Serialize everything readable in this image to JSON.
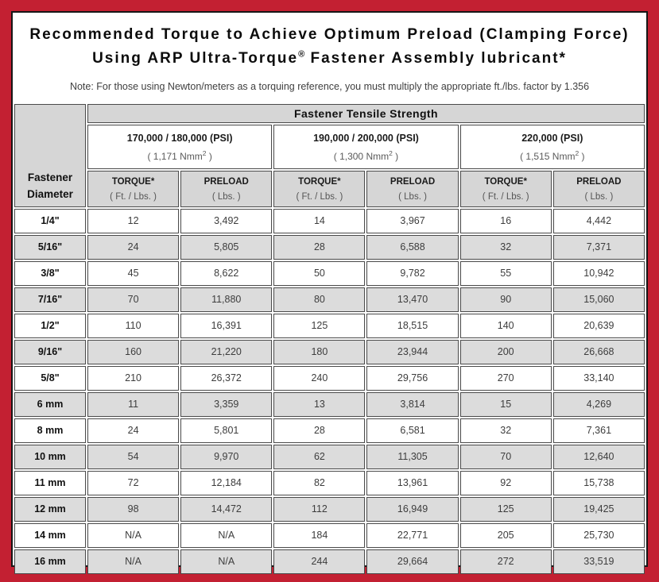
{
  "title": {
    "line1": "Recommended Torque to Achieve Optimum Preload (Clamping Force)",
    "line2_pre": "Using ARP Ultra-Torque",
    "line2_sup": "®",
    "line2_post": " Fastener Assembly lubricant*",
    "note": "Note: For those using Newton/meters as a torquing reference, you must multiply the appropriate ft./lbs. factor by 1.356"
  },
  "table": {
    "tensile_header": "Fastener Tensile Strength",
    "diameter_header_line1": "Fastener",
    "diameter_header_line2": "Diameter",
    "groups": [
      {
        "psi": "170,000 / 180,000 (PSI)",
        "nmm_pre": "( 1,171 Nmm",
        "nmm_sup": "2",
        "nmm_post": " )"
      },
      {
        "psi": "190,000 / 200,000 (PSI)",
        "nmm_pre": "( 1,300 Nmm",
        "nmm_sup": "2",
        "nmm_post": " )"
      },
      {
        "psi": "220,000 (PSI)",
        "nmm_pre": "( 1,515 Nmm",
        "nmm_sup": "2",
        "nmm_post": " )"
      }
    ],
    "torque_label": "TORQUE*",
    "torque_unit": "( Ft. / Lbs. )",
    "preload_label": "PRELOAD",
    "preload_unit": "( Lbs. )",
    "rows": [
      {
        "diameter": "1/4\"",
        "values": [
          "12",
          "3,492",
          "14",
          "3,967",
          "16",
          "4,442"
        ]
      },
      {
        "diameter": "5/16\"",
        "values": [
          "24",
          "5,805",
          "28",
          "6,588",
          "32",
          "7,371"
        ]
      },
      {
        "diameter": "3/8\"",
        "values": [
          "45",
          "8,622",
          "50",
          "9,782",
          "55",
          "10,942"
        ]
      },
      {
        "diameter": "7/16\"",
        "values": [
          "70",
          "11,880",
          "80",
          "13,470",
          "90",
          "15,060"
        ]
      },
      {
        "diameter": "1/2\"",
        "values": [
          "110",
          "16,391",
          "125",
          "18,515",
          "140",
          "20,639"
        ]
      },
      {
        "diameter": "9/16\"",
        "values": [
          "160",
          "21,220",
          "180",
          "23,944",
          "200",
          "26,668"
        ]
      },
      {
        "diameter": "5/8\"",
        "values": [
          "210",
          "26,372",
          "240",
          "29,756",
          "270",
          "33,140"
        ]
      },
      {
        "diameter": "6 mm",
        "values": [
          "11",
          "3,359",
          "13",
          "3,814",
          "15",
          "4,269"
        ]
      },
      {
        "diameter": "8 mm",
        "values": [
          "24",
          "5,801",
          "28",
          "6,581",
          "32",
          "7,361"
        ]
      },
      {
        "diameter": "10 mm",
        "values": [
          "54",
          "9,970",
          "62",
          "11,305",
          "70",
          "12,640"
        ]
      },
      {
        "diameter": "11 mm",
        "values": [
          "72",
          "12,184",
          "82",
          "13,961",
          "92",
          "15,738"
        ]
      },
      {
        "diameter": "12 mm",
        "values": [
          "98",
          "14,472",
          "112",
          "16,949",
          "125",
          "19,425"
        ]
      },
      {
        "diameter": "14 mm",
        "values": [
          "N/A",
          "N/A",
          "184",
          "22,771",
          "205",
          "25,730"
        ]
      },
      {
        "diameter": "16 mm",
        "values": [
          "N/A",
          "N/A",
          "244",
          "29,664",
          "272",
          "33,519"
        ]
      }
    ]
  },
  "colors": {
    "frame_red": "#c32032",
    "header_gray": "#d6d6d6",
    "row_alt_gray": "#dcdcdc",
    "panel_border_black": "#161616"
  }
}
